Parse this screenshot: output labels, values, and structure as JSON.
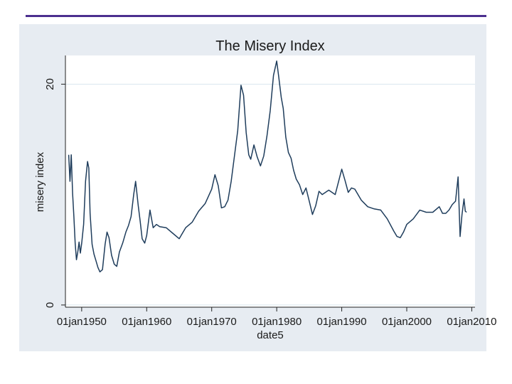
{
  "chart_data": {
    "type": "line",
    "title": "The Misery Index",
    "xlabel": "date5",
    "ylabel": "misery index",
    "xlim": [
      1947.5,
      2010.5
    ],
    "ylim": [
      -0.2,
      22.6
    ],
    "grid": true,
    "line_color": "#1f3d5c",
    "x_ticks": [
      {
        "value": 1950,
        "label": "01jan1950"
      },
      {
        "value": 1960,
        "label": "01jan1960"
      },
      {
        "value": 1970,
        "label": "01jan1970"
      },
      {
        "value": 1980,
        "label": "01jan1980"
      },
      {
        "value": 1990,
        "label": "01jan1990"
      },
      {
        "value": 2000,
        "label": "01jan2000"
      },
      {
        "value": 2010,
        "label": "01jan2010"
      }
    ],
    "y_ticks": [
      {
        "value": 0,
        "label": "0"
      },
      {
        "value": 20,
        "label": "20"
      }
    ],
    "series": [
      {
        "name": "misery index",
        "x": [
          1948.0,
          1948.2,
          1948.4,
          1948.6,
          1948.8,
          1949.0,
          1949.2,
          1949.4,
          1949.6,
          1949.8,
          1950.0,
          1950.3,
          1950.6,
          1950.9,
          1951.1,
          1951.3,
          1951.6,
          1951.9,
          1952.2,
          1952.5,
          1952.8,
          1953.2,
          1953.6,
          1953.9,
          1954.2,
          1954.6,
          1955.0,
          1955.4,
          1955.8,
          1956.3,
          1956.8,
          1957.2,
          1957.6,
          1958.0,
          1958.3,
          1958.7,
          1959.0,
          1959.3,
          1959.7,
          1960.0,
          1960.5,
          1961.0,
          1961.5,
          1962.0,
          1963.0,
          1964.0,
          1965.0,
          1966.0,
          1967.0,
          1968.0,
          1969.0,
          1970.0,
          1970.5,
          1971.0,
          1971.5,
          1972.0,
          1972.5,
          1973.0,
          1973.5,
          1974.0,
          1974.5,
          1974.9,
          1975.3,
          1975.7,
          1976.0,
          1976.5,
          1977.0,
          1977.5,
          1978.0,
          1978.5,
          1979.0,
          1979.5,
          1980.0,
          1980.3,
          1980.7,
          1981.0,
          1981.4,
          1981.8,
          1982.2,
          1982.6,
          1983.0,
          1983.5,
          1984.0,
          1984.5,
          1985.0,
          1985.5,
          1986.0,
          1986.5,
          1987.0,
          1988.0,
          1989.0,
          1990.0,
          1990.5,
          1991.0,
          1991.5,
          1992.0,
          1993.0,
          1994.0,
          1995.0,
          1996.0,
          1997.0,
          1998.0,
          1998.5,
          1999.0,
          1999.5,
          2000.0,
          2001.0,
          2002.0,
          2003.0,
          2004.0,
          2005.0,
          2005.5,
          2006.0,
          2006.5,
          2007.0,
          2007.5,
          2007.9,
          2008.2,
          2008.5,
          2008.8,
          2009.0,
          2009.2
        ],
        "values": [
          13.6,
          11.2,
          13.6,
          10.1,
          8.0,
          5.6,
          4.1,
          4.8,
          5.7,
          4.7,
          5.6,
          7.3,
          11.2,
          13.0,
          12.4,
          8.3,
          5.5,
          4.6,
          4.0,
          3.4,
          3.0,
          3.2,
          5.5,
          6.6,
          6.1,
          4.5,
          3.7,
          3.5,
          4.8,
          5.6,
          6.6,
          7.2,
          8.0,
          10.0,
          11.2,
          9.0,
          7.6,
          6.0,
          5.6,
          6.3,
          8.6,
          7.0,
          7.3,
          7.1,
          7.0,
          6.5,
          6.0,
          7.0,
          7.5,
          8.5,
          9.2,
          10.5,
          11.8,
          10.8,
          8.8,
          8.9,
          9.5,
          11.2,
          13.5,
          15.8,
          19.9,
          19.0,
          15.6,
          13.6,
          13.2,
          14.5,
          13.4,
          12.6,
          13.5,
          15.3,
          17.6,
          20.8,
          22.1,
          20.7,
          18.8,
          17.8,
          15.2,
          13.8,
          13.3,
          12.2,
          11.4,
          10.9,
          10.0,
          10.6,
          9.4,
          8.2,
          9.0,
          10.3,
          10.0,
          10.4,
          10.0,
          12.3,
          11.3,
          10.2,
          10.6,
          10.5,
          9.5,
          8.9,
          8.7,
          8.6,
          7.8,
          6.7,
          6.2,
          6.1,
          6.6,
          7.3,
          7.8,
          8.6,
          8.4,
          8.4,
          8.9,
          8.3,
          8.3,
          8.6,
          9.1,
          9.4,
          11.6,
          6.2,
          8.2,
          9.6,
          8.5,
          8.4
        ]
      }
    ]
  }
}
